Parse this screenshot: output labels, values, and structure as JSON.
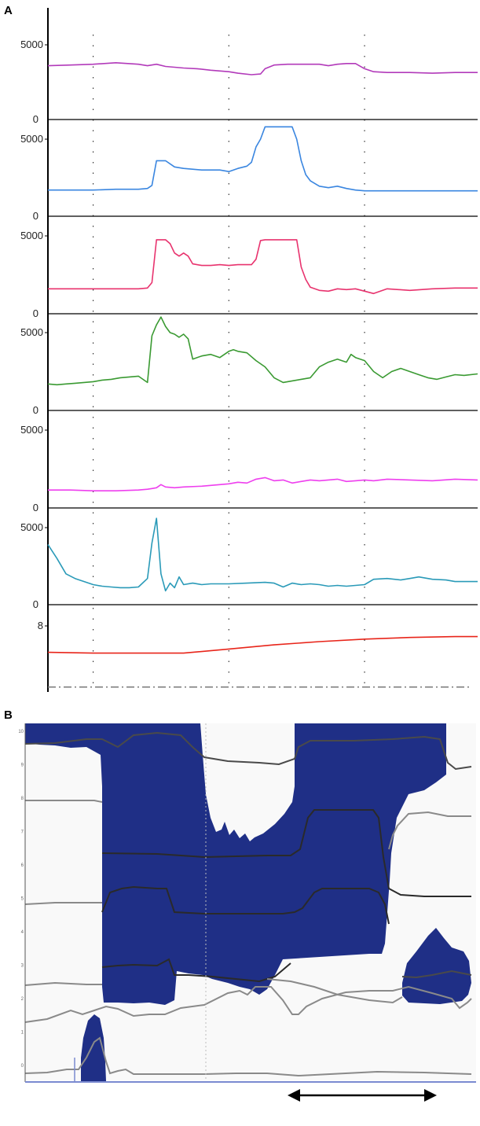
{
  "panel_a_letter": "A",
  "panel_b_letter": "B",
  "chart_data": [
    {
      "type": "line",
      "panel": "A",
      "title": "",
      "xlabel": "",
      "ylabel": "",
      "grid": "dotted vertical lines at x=10, 40, 70",
      "xlim": [
        0,
        95
      ],
      "series": [
        {
          "tick_labels": [
            "5000",
            "0"
          ],
          "ylim": [
            0,
            6000
          ],
          "color": "#b23aba",
          "x": [
            0,
            5,
            10,
            15,
            20,
            22,
            24,
            26,
            28,
            30,
            33,
            36,
            40,
            42,
            45,
            47,
            48,
            50,
            53,
            55,
            58,
            60,
            62,
            64,
            66,
            68,
            70,
            72,
            75,
            80,
            85,
            90,
            95
          ],
          "y": [
            3600,
            3650,
            3700,
            3800,
            3700,
            3600,
            3700,
            3550,
            3500,
            3450,
            3400,
            3300,
            3200,
            3100,
            3000,
            3050,
            3400,
            3650,
            3700,
            3700,
            3700,
            3700,
            3600,
            3700,
            3750,
            3750,
            3400,
            3200,
            3150,
            3150,
            3100,
            3150,
            3150
          ]
        },
        {
          "tick_labels": [
            "5000",
            "0"
          ],
          "ylim": [
            0,
            6000
          ],
          "color": "#3a86e0",
          "x": [
            0,
            5,
            10,
            15,
            20,
            22,
            23,
            24,
            25,
            26,
            28,
            30,
            34,
            38,
            40,
            42,
            44,
            45,
            46,
            47,
            48,
            50,
            52,
            53,
            54,
            55,
            56,
            57,
            58,
            60,
            62,
            64,
            66,
            68,
            70,
            72,
            75,
            80,
            85,
            90,
            95
          ],
          "y": [
            1700,
            1700,
            1700,
            1750,
            1750,
            1800,
            2000,
            3600,
            3600,
            3600,
            3200,
            3100,
            3000,
            3000,
            2900,
            3100,
            3250,
            3500,
            4500,
            5000,
            5800,
            5800,
            5800,
            5800,
            5800,
            5000,
            3600,
            2700,
            2300,
            1950,
            1850,
            1950,
            1800,
            1700,
            1650,
            1650,
            1650,
            1650,
            1650,
            1650,
            1650
          ]
        },
        {
          "tick_labels": [
            "5000",
            "0"
          ],
          "ylim": [
            0,
            6000
          ],
          "color": "#e8336e",
          "x": [
            0,
            5,
            10,
            15,
            20,
            22,
            23,
            24,
            25,
            26,
            27,
            28,
            29,
            30,
            31,
            32,
            34,
            36,
            38,
            40,
            42,
            45,
            46,
            47,
            48,
            50,
            53,
            55,
            56,
            57,
            58,
            60,
            62,
            64,
            66,
            68,
            70,
            72,
            75,
            80,
            85,
            90,
            95
          ],
          "y": [
            1600,
            1600,
            1600,
            1600,
            1600,
            1650,
            2000,
            4750,
            4750,
            4750,
            4500,
            3900,
            3700,
            3900,
            3700,
            3200,
            3100,
            3100,
            3150,
            3100,
            3150,
            3150,
            3500,
            4700,
            4750,
            4750,
            4750,
            4750,
            3000,
            2200,
            1700,
            1500,
            1450,
            1600,
            1550,
            1600,
            1450,
            1300,
            1600,
            1500,
            1600,
            1650,
            1650
          ]
        },
        {
          "tick_labels": [
            "5000",
            "0"
          ],
          "ylim": [
            0,
            6000
          ],
          "color": "#3a9a32",
          "x": [
            0,
            2,
            4,
            6,
            8,
            10,
            12,
            14,
            16,
            18,
            20,
            22,
            23,
            24,
            25,
            26,
            27,
            28,
            29,
            30,
            31,
            32,
            34,
            36,
            38,
            40,
            41,
            42,
            44,
            46,
            48,
            50,
            52,
            54,
            56,
            58,
            60,
            62,
            64,
            66,
            67,
            68,
            70,
            72,
            74,
            76,
            78,
            80,
            82,
            84,
            86,
            88,
            90,
            92,
            95
          ],
          "y": [
            1700,
            1650,
            1700,
            1750,
            1800,
            1850,
            1950,
            2000,
            2100,
            2150,
            2200,
            1800,
            4800,
            5500,
            6000,
            5400,
            5000,
            4900,
            4700,
            4900,
            4600,
            3300,
            3500,
            3600,
            3400,
            3800,
            3900,
            3800,
            3700,
            3200,
            2800,
            2100,
            1800,
            1900,
            2000,
            2100,
            2800,
            3100,
            3300,
            3100,
            3600,
            3400,
            3200,
            2500,
            2100,
            2500,
            2700,
            2500,
            2300,
            2100,
            2000,
            2150,
            2300,
            2250,
            2350
          ]
        },
        {
          "tick_labels": [
            "5000",
            "0"
          ],
          "ylim": [
            0,
            6000
          ],
          "color": "#ee3fee",
          "x": [
            0,
            5,
            10,
            15,
            20,
            22,
            23,
            24,
            25,
            26,
            28,
            30,
            34,
            38,
            40,
            42,
            44,
            46,
            48,
            50,
            52,
            54,
            56,
            58,
            60,
            62,
            64,
            66,
            68,
            70,
            72,
            75,
            80,
            85,
            90,
            95
          ],
          "y": [
            1150,
            1150,
            1100,
            1100,
            1150,
            1200,
            1250,
            1300,
            1500,
            1350,
            1300,
            1350,
            1400,
            1500,
            1550,
            1650,
            1600,
            1850,
            1950,
            1750,
            1800,
            1600,
            1700,
            1800,
            1750,
            1800,
            1850,
            1700,
            1750,
            1800,
            1750,
            1850,
            1800,
            1750,
            1850,
            1800
          ]
        },
        {
          "tick_labels": [
            "5000",
            "0"
          ],
          "ylim": [
            0,
            6000
          ],
          "color": "#2a9ab8",
          "x": [
            0,
            2,
            4,
            6,
            8,
            10,
            12,
            14,
            16,
            18,
            20,
            22,
            23,
            24,
            25,
            26,
            27,
            28,
            29,
            30,
            32,
            34,
            36,
            40,
            44,
            48,
            50,
            52,
            54,
            56,
            58,
            60,
            62,
            64,
            66,
            68,
            70,
            72,
            75,
            78,
            80,
            82,
            85,
            88,
            90,
            92,
            95
          ],
          "y": [
            3900,
            3000,
            2000,
            1700,
            1500,
            1300,
            1200,
            1150,
            1100,
            1100,
            1150,
            1700,
            4000,
            5600,
            2000,
            900,
            1400,
            1100,
            1800,
            1300,
            1400,
            1300,
            1350,
            1350,
            1400,
            1450,
            1400,
            1150,
            1400,
            1300,
            1350,
            1300,
            1200,
            1250,
            1200,
            1250,
            1300,
            1650,
            1700,
            1600,
            1700,
            1800,
            1650,
            1600,
            1500,
            1500,
            1500
          ]
        },
        {
          "tick_labels": [
            "8",
            ""
          ],
          "ylim": [
            0,
            10
          ],
          "color": "#e8251a",
          "reference_line": {
            "y": 0.6,
            "style": "dash-dot",
            "color": "#7a7a7a"
          },
          "x": [
            0,
            10,
            20,
            30,
            40,
            50,
            60,
            70,
            80,
            90,
            95
          ],
          "y": [
            4.8,
            4.7,
            4.7,
            4.7,
            5.2,
            5.7,
            6.1,
            6.4,
            6.6,
            6.7,
            6.7
          ]
        }
      ]
    },
    {
      "type": "heatmap",
      "panel": "B",
      "title": "",
      "xlabel": "",
      "ylabel": "",
      "ytick_labels": [
        "10",
        "9",
        "8",
        "7",
        "6",
        "5",
        "4",
        "3",
        "2",
        "1",
        "0"
      ],
      "fill_color": "#1f2f86",
      "background": "#f9f9f9",
      "scale_arrow": "double-headed horizontal arrow below x axis, right side"
    }
  ]
}
